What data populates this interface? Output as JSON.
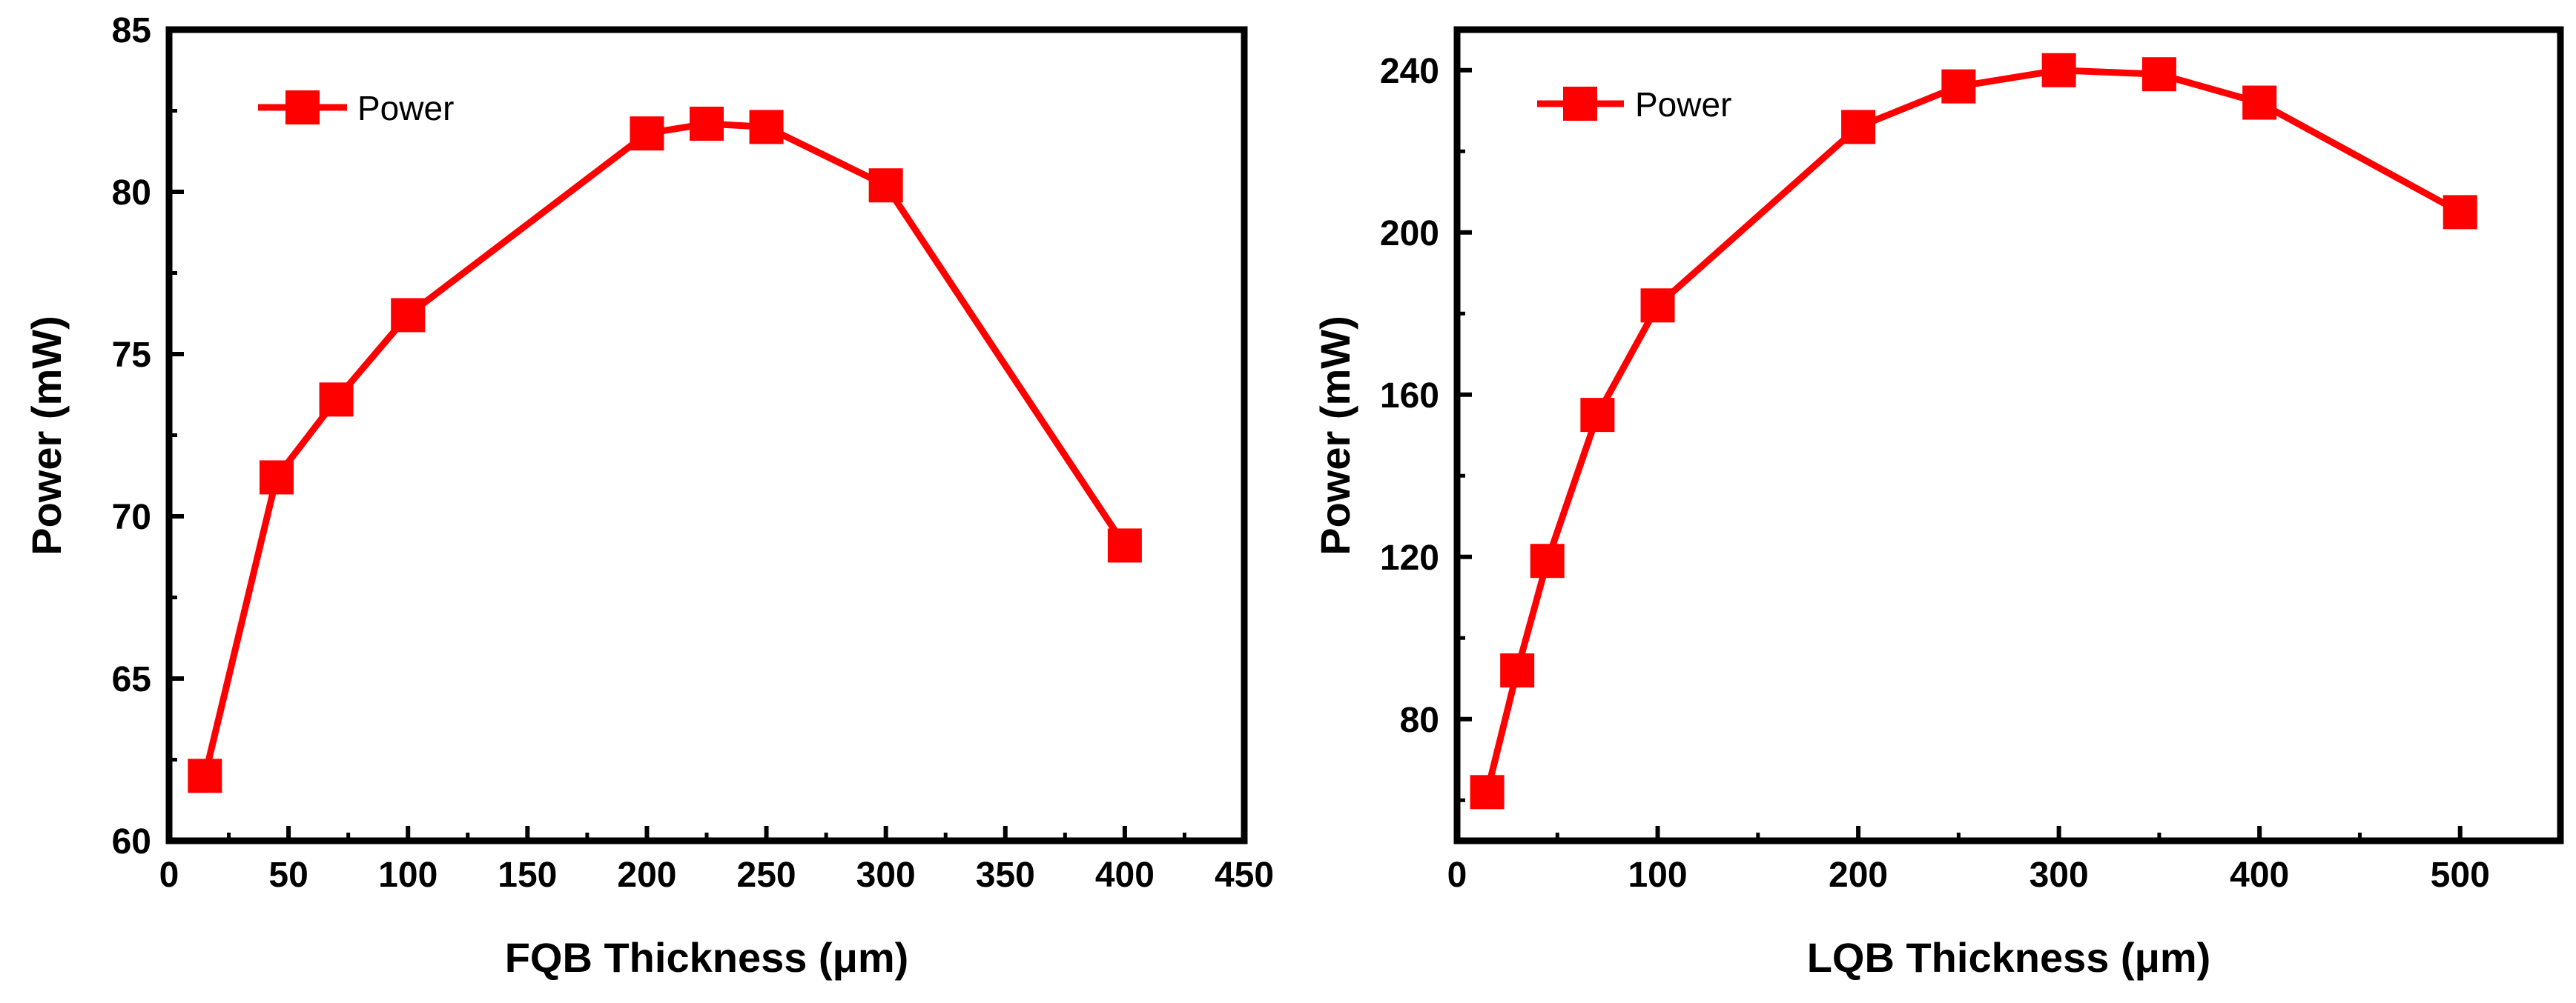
{
  "chart_data": [
    {
      "type": "line",
      "xlabel": "FQB Thickness (μm)",
      "ylabel": "Power (mW)",
      "xlim": [
        0,
        450
      ],
      "ylim": [
        60,
        85
      ],
      "xticks": [
        0,
        50,
        100,
        150,
        200,
        250,
        300,
        350,
        400,
        450
      ],
      "yticks": [
        60,
        65,
        70,
        75,
        80,
        85
      ],
      "legend": "top-left",
      "marker": "square",
      "color": "#ff0000",
      "series": [
        {
          "name": "Power",
          "x": [
            15,
            45,
            70,
            100,
            200,
            225,
            250,
            300,
            400
          ],
          "y": [
            62.0,
            71.2,
            73.6,
            76.2,
            81.8,
            82.1,
            82.0,
            80.2,
            69.1
          ]
        }
      ]
    },
    {
      "type": "line",
      "xlabel": "LQB Thickness (μm)",
      "ylabel": "Power (mW)",
      "xlim": [
        0,
        550
      ],
      "ylim": [
        50,
        250
      ],
      "xticks": [
        0,
        100,
        200,
        300,
        400,
        500
      ],
      "yticks": [
        80,
        120,
        160,
        200,
        240
      ],
      "legend": "top-left",
      "marker": "square",
      "color": "#ff0000",
      "series": [
        {
          "name": "Power",
          "x": [
            15,
            30,
            45,
            70,
            100,
            200,
            250,
            300,
            350,
            400,
            500
          ],
          "y": [
            62,
            92,
            119,
            155,
            182,
            226,
            236,
            240,
            239,
            232,
            205
          ]
        }
      ]
    }
  ]
}
